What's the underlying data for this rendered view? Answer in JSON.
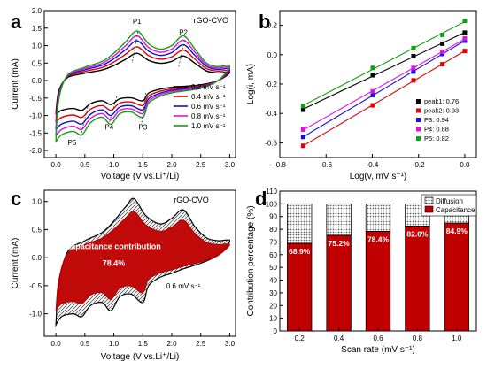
{
  "colors": {
    "black": "#000000",
    "red": "#e00000",
    "blue": "#1010e0",
    "magenta": "#e010e0",
    "green": "#10a010",
    "fill_red": "#c00000",
    "hatch": "#8a8a8a"
  },
  "chart_data": [
    {
      "panel": "a",
      "type": "line",
      "annotation": "rGO-CVO",
      "xlabel": "Voltage (V vs.Li⁺/Li)",
      "ylabel": "Current (mA)",
      "xlim": [
        -0.2,
        3.1
      ],
      "ylim": [
        -2.2,
        2.0
      ],
      "xticks": [
        "0.0",
        "0.5",
        "1.0",
        "1.5",
        "2.0",
        "2.5",
        "3.0"
      ],
      "xtick_values": [
        0,
        0.5,
        1,
        1.5,
        2,
        2.5,
        3
      ],
      "yticks": [
        "-2.0",
        "-1.5",
        "-1.0",
        "-0.5",
        "0.0",
        "0.5",
        "1.0",
        "1.5",
        "2.0"
      ],
      "ytick_values": [
        -2,
        -1.5,
        -1,
        -0.5,
        0,
        0.5,
        1,
        1.5,
        2
      ],
      "peak_labels": [
        {
          "text": "P1",
          "x": 1.4,
          "y": 1.62
        },
        {
          "text": "P2",
          "x": 2.2,
          "y": 1.3
        },
        {
          "text": "P3",
          "x": 1.5,
          "y": -1.4
        },
        {
          "text": "P4",
          "x": 0.92,
          "y": -1.4
        },
        {
          "text": "P5",
          "x": 0.28,
          "y": -1.85
        }
      ],
      "legend_position": "center-right",
      "series": [
        {
          "name": "0.2 mV s⁻¹",
          "color": "#000000",
          "scale": 0.55
        },
        {
          "name": "0.4 mV s⁻¹",
          "color": "#e00000",
          "scale": 0.68
        },
        {
          "name": "0.6 mV s⁻¹",
          "color": "#1010e0",
          "scale": 0.8
        },
        {
          "name": "0.8 mV s⁻¹",
          "color": "#e010e0",
          "scale": 0.9
        },
        {
          "name": "1.0 mV s⁻¹",
          "color": "#10a010",
          "scale": 1.0
        }
      ],
      "base_anodic": [
        [
          0.0,
          -1.75
        ],
        [
          0.05,
          -0.55
        ],
        [
          0.2,
          0.15
        ],
        [
          0.5,
          0.38
        ],
        [
          0.8,
          0.55
        ],
        [
          1.0,
          0.78
        ],
        [
          1.2,
          1.1
        ],
        [
          1.4,
          1.42
        ],
        [
          1.6,
          1.05
        ],
        [
          1.8,
          0.9
        ],
        [
          2.0,
          1.0
        ],
        [
          2.2,
          1.28
        ],
        [
          2.4,
          0.9
        ],
        [
          2.6,
          0.5
        ],
        [
          2.8,
          0.4
        ],
        [
          3.0,
          0.42
        ]
      ],
      "base_cathodic": [
        [
          3.0,
          0.42
        ],
        [
          2.8,
          0.0
        ],
        [
          2.5,
          -0.22
        ],
        [
          2.2,
          -0.3
        ],
        [
          2.0,
          -0.35
        ],
        [
          1.8,
          -0.45
        ],
        [
          1.6,
          -0.65
        ],
        [
          1.5,
          -1.05
        ],
        [
          1.3,
          -0.9
        ],
        [
          1.1,
          -0.95
        ],
        [
          0.95,
          -1.25
        ],
        [
          0.8,
          -1.05
        ],
        [
          0.6,
          -1.2
        ],
        [
          0.45,
          -1.55
        ],
        [
          0.3,
          -1.45
        ],
        [
          0.1,
          -1.55
        ],
        [
          0.0,
          -1.75
        ]
      ]
    },
    {
      "panel": "b",
      "type": "scatter",
      "xlabel": "Log(v, mV s⁻¹)",
      "ylabel": "Log(i, mA)",
      "xlim": [
        -0.8,
        0.05
      ],
      "ylim": [
        -0.7,
        0.3
      ],
      "xticks": [
        "-0.8",
        "-0.6",
        "-0.4",
        "-0.2",
        "0.0"
      ],
      "xtick_values": [
        -0.8,
        -0.6,
        -0.4,
        -0.2,
        0.0
      ],
      "yticks": [
        "-0.6",
        "-0.4",
        "-0.2",
        "0.0",
        "0.2"
      ],
      "ytick_values": [
        -0.6,
        -0.4,
        -0.2,
        0.0,
        0.2
      ],
      "x": [
        -0.699,
        -0.398,
        -0.222,
        -0.097,
        0.0
      ],
      "legend_position": "bottom-right",
      "series": [
        {
          "name": "peak1: 0.76",
          "color": "#000000",
          "values": [
            -0.375,
            -0.14,
            -0.01,
            0.075,
            0.15
          ]
        },
        {
          "name": "peak2: 0.93",
          "color": "#e00000",
          "values": [
            -0.62,
            -0.345,
            -0.175,
            -0.065,
            0.025
          ]
        },
        {
          "name": "P3: 0.94",
          "color": "#1010e0",
          "values": [
            -0.56,
            -0.275,
            -0.115,
            0.005,
            0.095
          ]
        },
        {
          "name": "P4: 0.88",
          "color": "#e010e0",
          "values": [
            -0.51,
            -0.25,
            -0.09,
            0.02,
            0.11
          ]
        },
        {
          "name": "P5: 0.82",
          "color": "#10a010",
          "values": [
            -0.35,
            -0.09,
            0.045,
            0.135,
            0.23
          ]
        }
      ]
    },
    {
      "panel": "c",
      "type": "area",
      "annotation": "rGO-CVO",
      "inner_label": "capacitance contribution",
      "percent_label": "78.4%",
      "rate_label": "0.6 mV s⁻¹",
      "xlabel": "Voltage (V vs.Li⁺/Li)",
      "ylabel": "Current (mA)",
      "xlim": [
        -0.2,
        3.1
      ],
      "ylim": [
        -1.4,
        1.2
      ],
      "xticks": [
        "0.0",
        "0.5",
        "1.0",
        "1.5",
        "2.0",
        "2.5",
        "3.0"
      ],
      "xtick_values": [
        0,
        0.5,
        1,
        1.5,
        2,
        2.5,
        3
      ],
      "yticks": [
        "-1.0",
        "-0.5",
        "0.0",
        "0.5",
        "1.0"
      ],
      "ytick_values": [
        -1,
        -0.5,
        0,
        0.5,
        1
      ],
      "outer_anodic": [
        [
          0.0,
          -1.2
        ],
        [
          0.05,
          -0.5
        ],
        [
          0.2,
          0.1
        ],
        [
          0.5,
          0.3
        ],
        [
          0.8,
          0.45
        ],
        [
          1.0,
          0.65
        ],
        [
          1.2,
          0.9
        ],
        [
          1.35,
          1.05
        ],
        [
          1.55,
          0.75
        ],
        [
          1.8,
          0.6
        ],
        [
          2.0,
          0.7
        ],
        [
          2.2,
          0.85
        ],
        [
          2.4,
          0.55
        ],
        [
          2.6,
          0.35
        ],
        [
          2.8,
          0.3
        ],
        [
          3.0,
          0.3
        ]
      ],
      "outer_cathodic": [
        [
          3.0,
          0.3
        ],
        [
          2.8,
          0.05
        ],
        [
          2.5,
          -0.1
        ],
        [
          2.2,
          -0.2
        ],
        [
          2.0,
          -0.28
        ],
        [
          1.8,
          -0.35
        ],
        [
          1.6,
          -0.5
        ],
        [
          1.5,
          -0.8
        ],
        [
          1.3,
          -0.65
        ],
        [
          1.1,
          -0.7
        ],
        [
          0.95,
          -0.95
        ],
        [
          0.8,
          -0.8
        ],
        [
          0.6,
          -0.85
        ],
        [
          0.45,
          -1.05
        ],
        [
          0.3,
          -1.0
        ],
        [
          0.1,
          -1.05
        ],
        [
          0.0,
          -1.2
        ]
      ],
      "cap_fraction": 0.784
    },
    {
      "panel": "d",
      "type": "bar",
      "xlabel": "Scan rate (mV s⁻¹)",
      "ylabel": "Contribution percentage (%)",
      "ylim": [
        0,
        110
      ],
      "yticks": [
        "0",
        "10",
        "20",
        "30",
        "40",
        "50",
        "60",
        "70",
        "80",
        "90",
        "100",
        "110"
      ],
      "ytick_values": [
        0,
        10,
        20,
        30,
        40,
        50,
        60,
        70,
        80,
        90,
        100,
        110
      ],
      "categories": [
        "0.2",
        "0.4",
        "0.6",
        "0.8",
        "1.0"
      ],
      "legend_position": "top-right",
      "series": [
        {
          "name": "Diffusion",
          "values": [
            31.1,
            24.8,
            21.6,
            17.4,
            15.1
          ]
        },
        {
          "name": "Capacitance",
          "values": [
            68.9,
            75.2,
            78.4,
            82.6,
            84.9
          ]
        }
      ],
      "data_labels": [
        "68.9%",
        "75.2%",
        "78.4%",
        "82.6%",
        "84.9%"
      ]
    }
  ],
  "panel_labels": [
    "a",
    "b",
    "c",
    "d"
  ]
}
